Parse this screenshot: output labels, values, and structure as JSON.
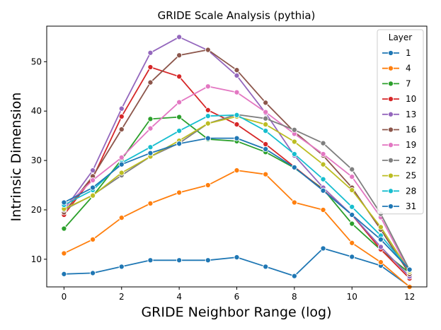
{
  "chart_data": {
    "type": "line",
    "title": "GRIDE Scale Analysis (pythia)",
    "xlabel": "GRIDE Neighbor Range (log)",
    "ylabel": "Intrinsic Dimension",
    "xlim": [
      -0.6,
      12.6
    ],
    "ylim": [
      4.4,
      57.2
    ],
    "xticks": [
      0,
      2,
      4,
      6,
      8,
      10,
      12
    ],
    "yticks": [
      10,
      20,
      30,
      40,
      50
    ],
    "legend_title": "Layer",
    "legend_position": "top-right",
    "x": [
      0,
      1,
      2,
      3,
      4,
      5,
      6,
      7,
      8,
      9,
      10,
      11,
      12
    ],
    "series": [
      {
        "name": "1",
        "color": "#1f77b4",
        "values": [
          7.0,
          7.2,
          8.5,
          9.8,
          9.8,
          9.8,
          10.4,
          8.5,
          6.6,
          12.2,
          10.5,
          8.7,
          4.5
        ]
      },
      {
        "name": "4",
        "color": "#ff7f0e",
        "values": [
          11.2,
          14.0,
          18.4,
          21.3,
          23.5,
          25.0,
          28.0,
          27.2,
          21.5,
          20.0,
          13.3,
          9.4,
          4.4
        ]
      },
      {
        "name": "7",
        "color": "#2ca02c",
        "values": [
          16.2,
          22.8,
          30.2,
          38.4,
          38.8,
          34.3,
          33.9,
          31.7,
          28.5,
          24.2,
          17.2,
          11.9,
          7.2
        ]
      },
      {
        "name": "10",
        "color": "#d62728",
        "values": [
          19.0,
          26.5,
          38.9,
          48.9,
          47.0,
          40.2,
          37.3,
          33.3,
          28.7,
          24.0,
          19.0,
          12.0,
          6.1
        ]
      },
      {
        "name": "13",
        "color": "#9467bd",
        "values": [
          20.0,
          28.0,
          40.5,
          51.8,
          55.0,
          52.3,
          47.2,
          39.6,
          31.0,
          24.5,
          19.0,
          12.5,
          6.5
        ]
      },
      {
        "name": "16",
        "color": "#8c564b",
        "values": [
          19.5,
          26.8,
          36.3,
          45.8,
          51.3,
          52.4,
          48.3,
          41.7,
          35.8,
          31.0,
          24.5,
          16.0,
          7.0
        ]
      },
      {
        "name": "19",
        "color": "#e377c2",
        "values": [
          20.5,
          26.0,
          30.6,
          36.5,
          41.8,
          45.0,
          43.8,
          39.8,
          35.4,
          31.3,
          26.7,
          18.5,
          7.4
        ]
      },
      {
        "name": "22",
        "color": "#7f7f7f",
        "values": [
          20.0,
          23.0,
          27.0,
          30.8,
          33.5,
          37.5,
          39.3,
          38.5,
          36.2,
          33.5,
          28.2,
          19.2,
          7.8
        ]
      },
      {
        "name": "25",
        "color": "#bcbd22",
        "values": [
          20.2,
          22.9,
          27.5,
          30.8,
          34.0,
          37.5,
          38.9,
          37.3,
          33.8,
          29.2,
          24.0,
          16.5,
          7.5
        ]
      },
      {
        "name": "28",
        "color": "#17becf",
        "values": [
          21.0,
          24.0,
          29.5,
          32.7,
          36.0,
          39.0,
          39.2,
          36.0,
          31.3,
          26.2,
          20.6,
          14.8,
          7.8
        ]
      },
      {
        "name": "31",
        "color": "#1f77b4",
        "values": [
          21.5,
          24.5,
          29.2,
          31.5,
          33.4,
          34.5,
          34.5,
          32.3,
          28.6,
          23.9,
          19.0,
          14.0,
          7.9
        ]
      }
    ]
  }
}
